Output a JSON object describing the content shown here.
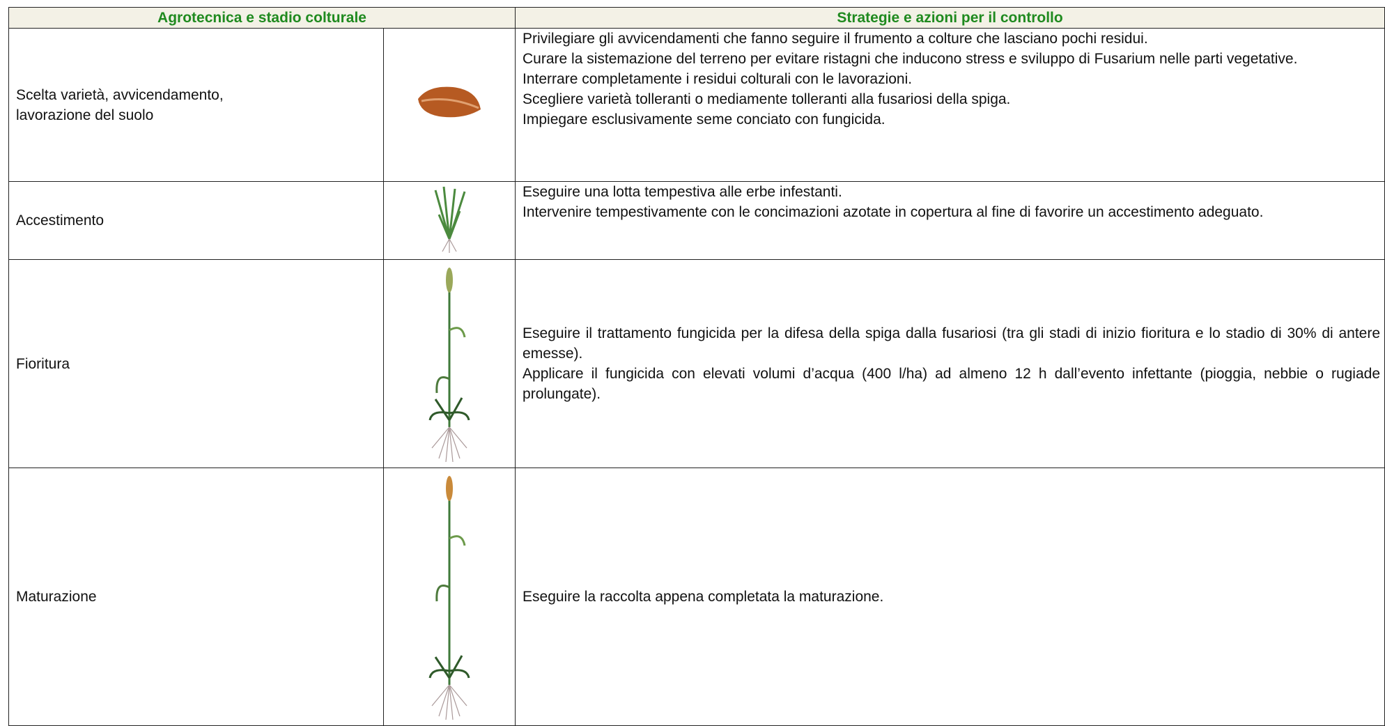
{
  "header": {
    "columns": [
      "Agrotecnica e stadio colturale",
      "Strategie e azioni per il controllo"
    ]
  },
  "rows": [
    {
      "stage": "Scelta varietà, avvicendamento, lavorazione del suolo",
      "actions": [
        "Privilegiare gli avvicendamenti che fanno seguire il frumento a colture che lasciano pochi residui.",
        "Curare la sistemazione del terreno per evitare ristagni che inducono stress e sviluppo di Fusarium nelle parti vegetative.",
        "Interrare completamente i residui colturali con le lavorazioni.",
        "Scegliere varietà tolleranti o mediamente tolleranti alla fusariosi della spiga.",
        "Impiegare esclusivamente seme conciato con fungicida."
      ]
    },
    {
      "stage": "Accestimento",
      "actions": [
        "Eseguire una lotta tempestiva alle erbe infestanti.",
        "Intervenire tempestivamente con le concimazioni azotate in copertura al fine di favorire un accestimento adeguato."
      ]
    },
    {
      "stage": "Fioritura",
      "actions": [
        "Eseguire il trattamento fungicida per la difesa della spiga dalla fusariosi (tra gli stadi di inizio fioritura e lo stadio di 30% di antere emesse).",
        "Applicare il fungicida con elevati volumi d’acqua (400 l/ha) ad almeno 12 h dall’evento infettante (pioggia, nebbie o rugiade prolungate)."
      ]
    },
    {
      "stage": "Maturazione",
      "actions": [
        "Eseguire la raccolta appena completata la maturazione."
      ]
    }
  ]
}
